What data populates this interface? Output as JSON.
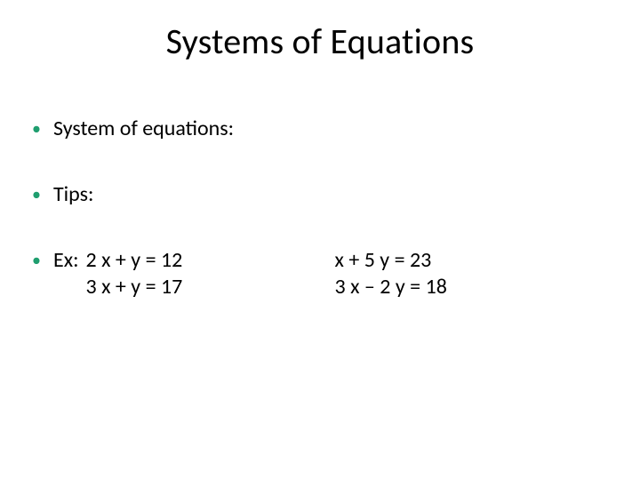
{
  "colors": {
    "background": "#ffffff",
    "text": "#000000",
    "bullet_accent": "#1f9e6f"
  },
  "typography": {
    "family": "Calibri",
    "title_fontsize": 40,
    "body_fontsize": 24
  },
  "title": "Systems of Equations",
  "bullets": {
    "b1_label": "System of equations:",
    "b2_label": "Tips:",
    "b3_label": "Ex:",
    "ex": {
      "left": {
        "line1": "2 x + y = 12",
        "line2": "3 x + y = 17"
      },
      "right": {
        "line1": "x + 5 y = 23",
        "line2": "3 x – 2 y = 18"
      }
    }
  }
}
